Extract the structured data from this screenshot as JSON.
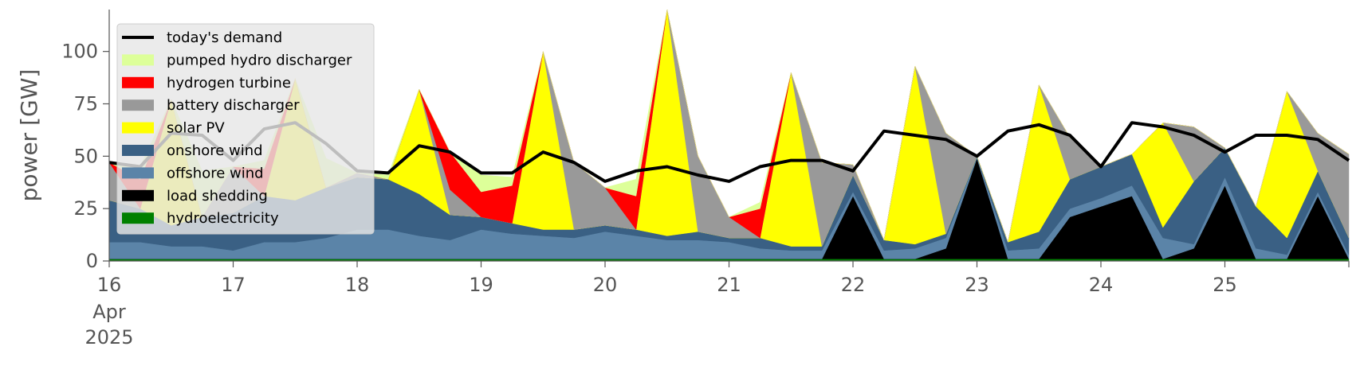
{
  "chart_data": {
    "type": "area",
    "stacked": true,
    "ylabel": "power [GW]",
    "xlabel": "",
    "ylim": [
      0,
      120
    ],
    "yticks": [
      0,
      25,
      50,
      75,
      100
    ],
    "xlim": [
      "2025-04-16T00:00",
      "2025-04-26T00:00"
    ],
    "xticks": [
      {
        "date": "2025-04-16",
        "label": "16",
        "sublabels": [
          "Apr",
          "2025"
        ]
      },
      {
        "date": "2025-04-17",
        "label": "17",
        "sublabels": []
      },
      {
        "date": "2025-04-18",
        "label": "18",
        "sublabels": []
      },
      {
        "date": "2025-04-19",
        "label": "19",
        "sublabels": []
      },
      {
        "date": "2025-04-20",
        "label": "20",
        "sublabels": []
      },
      {
        "date": "2025-04-21",
        "label": "21",
        "sublabels": []
      },
      {
        "date": "2025-04-22",
        "label": "22",
        "sublabels": []
      },
      {
        "date": "2025-04-23",
        "label": "23",
        "sublabels": []
      },
      {
        "date": "2025-04-24",
        "label": "24",
        "sublabels": []
      },
      {
        "date": "2025-04-25",
        "label": "25",
        "sublabels": []
      }
    ],
    "grid": false,
    "legend_position": "top-left",
    "x": [
      "2025-04-16T00:00",
      "2025-04-16T06:00",
      "2025-04-16T12:00",
      "2025-04-16T18:00",
      "2025-04-17T00:00",
      "2025-04-17T06:00",
      "2025-04-17T12:00",
      "2025-04-17T18:00",
      "2025-04-18T00:00",
      "2025-04-18T06:00",
      "2025-04-18T12:00",
      "2025-04-18T18:00",
      "2025-04-19T00:00",
      "2025-04-19T06:00",
      "2025-04-19T12:00",
      "2025-04-19T18:00",
      "2025-04-20T00:00",
      "2025-04-20T06:00",
      "2025-04-20T12:00",
      "2025-04-20T18:00",
      "2025-04-21T00:00",
      "2025-04-21T06:00",
      "2025-04-21T12:00",
      "2025-04-21T18:00",
      "2025-04-22T00:00",
      "2025-04-22T06:00",
      "2025-04-22T12:00",
      "2025-04-22T18:00",
      "2025-04-23T00:00",
      "2025-04-23T06:00",
      "2025-04-23T12:00",
      "2025-04-23T18:00",
      "2025-04-24T00:00",
      "2025-04-24T06:00",
      "2025-04-24T12:00",
      "2025-04-24T18:00",
      "2025-04-25T00:00",
      "2025-04-25T06:00",
      "2025-04-25T12:00",
      "2025-04-25T18:00",
      "2025-04-26T00:00"
    ],
    "series": [
      {
        "name": "hydroelectricity",
        "color": "#008000",
        "values": [
          1,
          1,
          1,
          1,
          1,
          1,
          1,
          1,
          1,
          1,
          1,
          1,
          1,
          1,
          1,
          1,
          1,
          1,
          1,
          1,
          1,
          1,
          1,
          1,
          1,
          1,
          1,
          1,
          1,
          1,
          1,
          1,
          1,
          1,
          1,
          1,
          1,
          1,
          1,
          1,
          1
        ]
      },
      {
        "name": "load shedding",
        "color": "#000000",
        "values": [
          0,
          0,
          0,
          0,
          0,
          0,
          0,
          0,
          0,
          0,
          0,
          0,
          0,
          0,
          0,
          0,
          0,
          0,
          0,
          0,
          0,
          0,
          0,
          0,
          30,
          0,
          0,
          5,
          48,
          0,
          0,
          20,
          25,
          30,
          0,
          5,
          35,
          0,
          0,
          30,
          0
        ]
      },
      {
        "name": "offshore wind",
        "color": "#5b84a8",
        "values": [
          8,
          8,
          6,
          6,
          4,
          8,
          8,
          10,
          14,
          14,
          11,
          9,
          14,
          12,
          11,
          10,
          13,
          11,
          9,
          9,
          8,
          5,
          4,
          4,
          2,
          4,
          5,
          5,
          1,
          4,
          5,
          4,
          4,
          5,
          10,
          2,
          4,
          5,
          2,
          2,
          2
        ]
      },
      {
        "name": "onshore wind",
        "color": "#3a6084",
        "values": [
          20,
          16,
          10,
          14,
          18,
          22,
          20,
          24,
          25,
          24,
          20,
          12,
          6,
          5,
          3,
          4,
          3,
          3,
          2,
          4,
          2,
          5,
          2,
          2,
          8,
          5,
          2,
          2,
          0,
          4,
          8,
          14,
          15,
          15,
          5,
          30,
          14,
          20,
          8,
          10,
          8
        ]
      },
      {
        "name": "solar PV",
        "color": "#ffff00",
        "values": [
          0,
          0,
          60,
          0,
          0,
          0,
          58,
          0,
          0,
          0,
          50,
          0,
          0,
          0,
          85,
          0,
          0,
          0,
          108,
          0,
          0,
          0,
          83,
          0,
          0,
          0,
          85,
          0,
          0,
          0,
          70,
          0,
          0,
          0,
          50,
          0,
          0,
          0,
          70,
          0,
          0
        ]
      },
      {
        "name": "battery discharger",
        "color": "#999999",
        "values": [
          18,
          0,
          0,
          0,
          22,
          0,
          0,
          0,
          2,
          0,
          0,
          12,
          0,
          0,
          0,
          32,
          18,
          0,
          0,
          36,
          10,
          0,
          0,
          40,
          5,
          0,
          0,
          48,
          0,
          0,
          0,
          20,
          0,
          0,
          0,
          26,
          0,
          0,
          0,
          18,
          40
        ]
      },
      {
        "name": "hydrogen turbine",
        "color": "#ff0000",
        "values": [
          0,
          14,
          0,
          0,
          0,
          13,
          0,
          0,
          0,
          0,
          0,
          18,
          12,
          18,
          0,
          0,
          0,
          16,
          0,
          0,
          0,
          14,
          0,
          0,
          0,
          0,
          0,
          0,
          0,
          0,
          0,
          0,
          0,
          0,
          0,
          0,
          0,
          0,
          0,
          0,
          0
        ]
      },
      {
        "name": "pumped hydro discharger",
        "color": "#ddff99",
        "values": [
          0,
          6,
          0,
          22,
          0,
          4,
          0,
          14,
          0,
          2,
          0,
          0,
          8,
          4,
          0,
          0,
          0,
          8,
          0,
          0,
          0,
          3,
          0,
          0,
          0,
          0,
          0,
          0,
          0,
          0,
          0,
          0,
          0,
          0,
          0,
          0,
          0,
          0,
          0,
          0,
          0
        ]
      }
    ],
    "demand": {
      "name": "today's demand",
      "color": "#000000",
      "values": [
        47,
        45,
        61,
        60,
        48,
        63,
        66,
        56,
        43,
        42,
        55,
        52,
        42,
        42,
        52,
        47,
        38,
        43,
        45,
        41,
        38,
        45,
        48,
        48,
        43,
        62,
        60,
        58,
        50,
        62,
        65,
        60,
        45,
        66,
        64,
        60,
        52,
        60,
        60,
        58,
        48
      ]
    },
    "legend": [
      {
        "label": "today's demand",
        "kind": "line",
        "color": "#000000"
      },
      {
        "label": "pumped hydro discharger",
        "kind": "patch",
        "color": "#ddff99"
      },
      {
        "label": "hydrogen turbine",
        "kind": "patch",
        "color": "#ff0000"
      },
      {
        "label": "battery discharger",
        "kind": "patch",
        "color": "#999999"
      },
      {
        "label": "solar PV",
        "kind": "patch",
        "color": "#ffff00"
      },
      {
        "label": "onshore wind",
        "kind": "patch",
        "color": "#3a6084"
      },
      {
        "label": "offshore wind",
        "kind": "patch",
        "color": "#5b84a8"
      },
      {
        "label": "load shedding",
        "kind": "patch",
        "color": "#000000"
      },
      {
        "label": "hydroelectricity",
        "kind": "patch",
        "color": "#008000"
      }
    ]
  }
}
